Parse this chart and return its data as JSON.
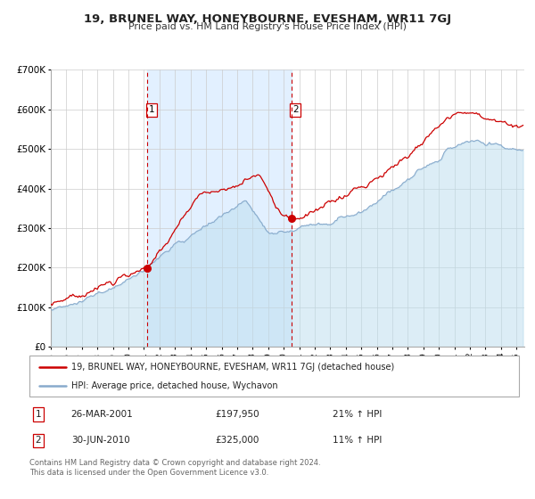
{
  "title": "19, BRUNEL WAY, HONEYBOURNE, EVESHAM, WR11 7GJ",
  "subtitle": "Price paid vs. HM Land Registry's House Price Index (HPI)",
  "bg_color": "#ffffff",
  "grid_color": "#cccccc",
  "shade_color": "#ddeeff",
  "red_line_color": "#cc0000",
  "blue_line_color": "#88bbdd",
  "blue_fill_color": "#aaccee",
  "marker_color": "#cc0000",
  "vline_color": "#cc0000",
  "sale1_date": "26-MAR-2001",
  "sale1_price": "£197,950",
  "sale1_hpi": "21% ↑ HPI",
  "sale1_value": 197950,
  "sale1_year": 2001.23,
  "sale2_date": "30-JUN-2010",
  "sale2_price": "£325,000",
  "sale2_hpi": "11% ↑ HPI",
  "sale2_value": 325000,
  "sale2_year": 2010.5,
  "legend_line1": "19, BRUNEL WAY, HONEYBOURNE, EVESHAM, WR11 7GJ (detached house)",
  "legend_line2": "HPI: Average price, detached house, Wychavon",
  "footer1": "Contains HM Land Registry data © Crown copyright and database right 2024.",
  "footer2": "This data is licensed under the Open Government Licence v3.0.",
  "xmin": 1995.0,
  "xmax": 2025.5,
  "ymin": 0,
  "ymax": 700000,
  "yticks": [
    0,
    100000,
    200000,
    300000,
    400000,
    500000,
    600000,
    700000
  ],
  "ytick_labels": [
    "£0",
    "£100K",
    "£200K",
    "£300K",
    "£400K",
    "£500K",
    "£600K",
    "£700K"
  ],
  "xticks": [
    1995,
    1996,
    1997,
    1998,
    1999,
    2000,
    2001,
    2002,
    2003,
    2004,
    2005,
    2006,
    2007,
    2008,
    2009,
    2010,
    2011,
    2012,
    2013,
    2014,
    2015,
    2016,
    2017,
    2018,
    2019,
    2020,
    2021,
    2022,
    2023,
    2024,
    2025
  ]
}
